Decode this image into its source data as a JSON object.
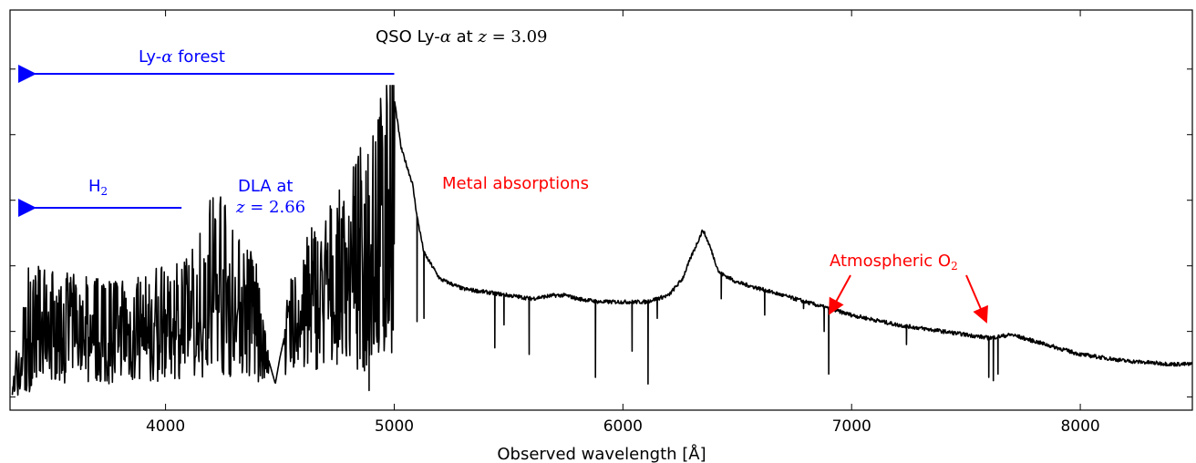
{
  "chart_data": {
    "type": "line",
    "title": "",
    "xlabel": "Observed wavelength [Å]",
    "ylabel": "",
    "xlim": [
      3320,
      8490
    ],
    "ylim": [
      -0.04,
      1.18
    ],
    "x_ticks": [
      4000,
      5000,
      6000,
      7000,
      8000
    ],
    "y_tick_labels_shown": false,
    "grid": false,
    "legend": "none",
    "series": [
      {
        "color": "#000000",
        "continuum": [
          [
            3330,
            0.05
          ],
          [
            3400,
            0.3
          ],
          [
            3500,
            0.29
          ],
          [
            3600,
            0.28
          ],
          [
            3700,
            0.27
          ],
          [
            3800,
            0.27
          ],
          [
            3900,
            0.28
          ],
          [
            4000,
            0.3
          ],
          [
            4100,
            0.32
          ],
          [
            4150,
            0.38
          ],
          [
            4200,
            0.46
          ],
          [
            4230,
            0.49
          ],
          [
            4260,
            0.44
          ],
          [
            4300,
            0.38
          ],
          [
            4400,
            0.32
          ],
          [
            4440,
            0.14
          ],
          [
            4480,
            0.04
          ],
          [
            4500,
            0.12
          ],
          [
            4550,
            0.28
          ],
          [
            4600,
            0.36
          ],
          [
            4700,
            0.42
          ],
          [
            4800,
            0.5
          ],
          [
            4880,
            0.6
          ],
          [
            4940,
            0.68
          ],
          [
            4970,
            0.8
          ],
          [
            5000,
            0.91
          ],
          [
            5030,
            0.76
          ],
          [
            5080,
            0.65
          ],
          [
            5100,
            0.55
          ],
          [
            5130,
            0.44
          ],
          [
            5200,
            0.36
          ],
          [
            5300,
            0.33
          ],
          [
            5400,
            0.32
          ],
          [
            5500,
            0.31
          ],
          [
            5600,
            0.3
          ],
          [
            5700,
            0.31
          ],
          [
            5750,
            0.31
          ],
          [
            5800,
            0.3
          ],
          [
            5900,
            0.29
          ],
          [
            6000,
            0.29
          ],
          [
            6100,
            0.29
          ],
          [
            6200,
            0.31
          ],
          [
            6260,
            0.36
          ],
          [
            6300,
            0.43
          ],
          [
            6350,
            0.51
          ],
          [
            6380,
            0.46
          ],
          [
            6420,
            0.38
          ],
          [
            6500,
            0.35
          ],
          [
            6600,
            0.33
          ],
          [
            6700,
            0.31
          ],
          [
            6800,
            0.29
          ],
          [
            6900,
            0.27
          ],
          [
            7000,
            0.25
          ],
          [
            7200,
            0.22
          ],
          [
            7400,
            0.2
          ],
          [
            7600,
            0.18
          ],
          [
            7700,
            0.19
          ],
          [
            7800,
            0.17
          ],
          [
            7900,
            0.15
          ],
          [
            8000,
            0.13
          ],
          [
            8200,
            0.11
          ],
          [
            8400,
            0.1
          ],
          [
            8490,
            0.1
          ]
        ],
        "absorption_lines": [
          [
            4750,
            0.1
          ],
          [
            4870,
            0.08
          ],
          [
            4890,
            0.02
          ],
          [
            5100,
            0.23
          ],
          [
            5130,
            0.24
          ],
          [
            5440,
            0.15
          ],
          [
            5480,
            0.22
          ],
          [
            5590,
            0.13
          ],
          [
            5880,
            0.06
          ],
          [
            6040,
            0.14
          ],
          [
            6110,
            0.04
          ],
          [
            6150,
            0.24
          ],
          [
            6430,
            0.3
          ],
          [
            6620,
            0.25
          ],
          [
            6790,
            0.27
          ],
          [
            6880,
            0.2
          ],
          [
            6900,
            0.07
          ],
          [
            7240,
            0.16
          ],
          [
            7600,
            0.06
          ],
          [
            7620,
            0.05
          ],
          [
            7640,
            0.07
          ]
        ]
      }
    ],
    "annotations": [
      {
        "text": "QSO Ly-α at z = 3.09",
        "color": "#000000"
      },
      {
        "text": "Ly-α forest",
        "color": "#0000ff",
        "arrow": "left",
        "from_x": 5000,
        "to_x": 3380
      },
      {
        "text": "H2",
        "color": "#0000ff",
        "arrow": "left",
        "from_x": 4070,
        "to_x": 3380
      },
      {
        "text": "DLA at",
        "color": "#0000ff"
      },
      {
        "text": "z = 2.66",
        "color": "#0000ff"
      },
      {
        "text": "Metal absorptions",
        "color": "#ff0000"
      },
      {
        "text": "Atmospheric O2",
        "color": "#ff0000",
        "arrows_to_x": [
          6890,
          7590
        ]
      }
    ]
  },
  "ann": {
    "qso_prefix": "QSO Ly-",
    "qso_alpha": "α",
    "qso_at": " at ",
    "qso_z": "z",
    "qso_eq": " = ",
    "qso_val": "3.09",
    "lya_prefix": "Ly-",
    "lya_alpha": "α",
    "lya_suffix": " forest",
    "h2_main": "H",
    "h2_sub": "2",
    "dla_line1": "DLA at",
    "dla_z": "z",
    "dla_eq": " = ",
    "dla_val": "2.66",
    "metal": "Metal absorptions",
    "atm_main": "Atmospheric O",
    "atm_sub": "2"
  },
  "colors": {
    "blue": "#0000ff",
    "red": "#ff0000",
    "spectrum": "#000000"
  }
}
